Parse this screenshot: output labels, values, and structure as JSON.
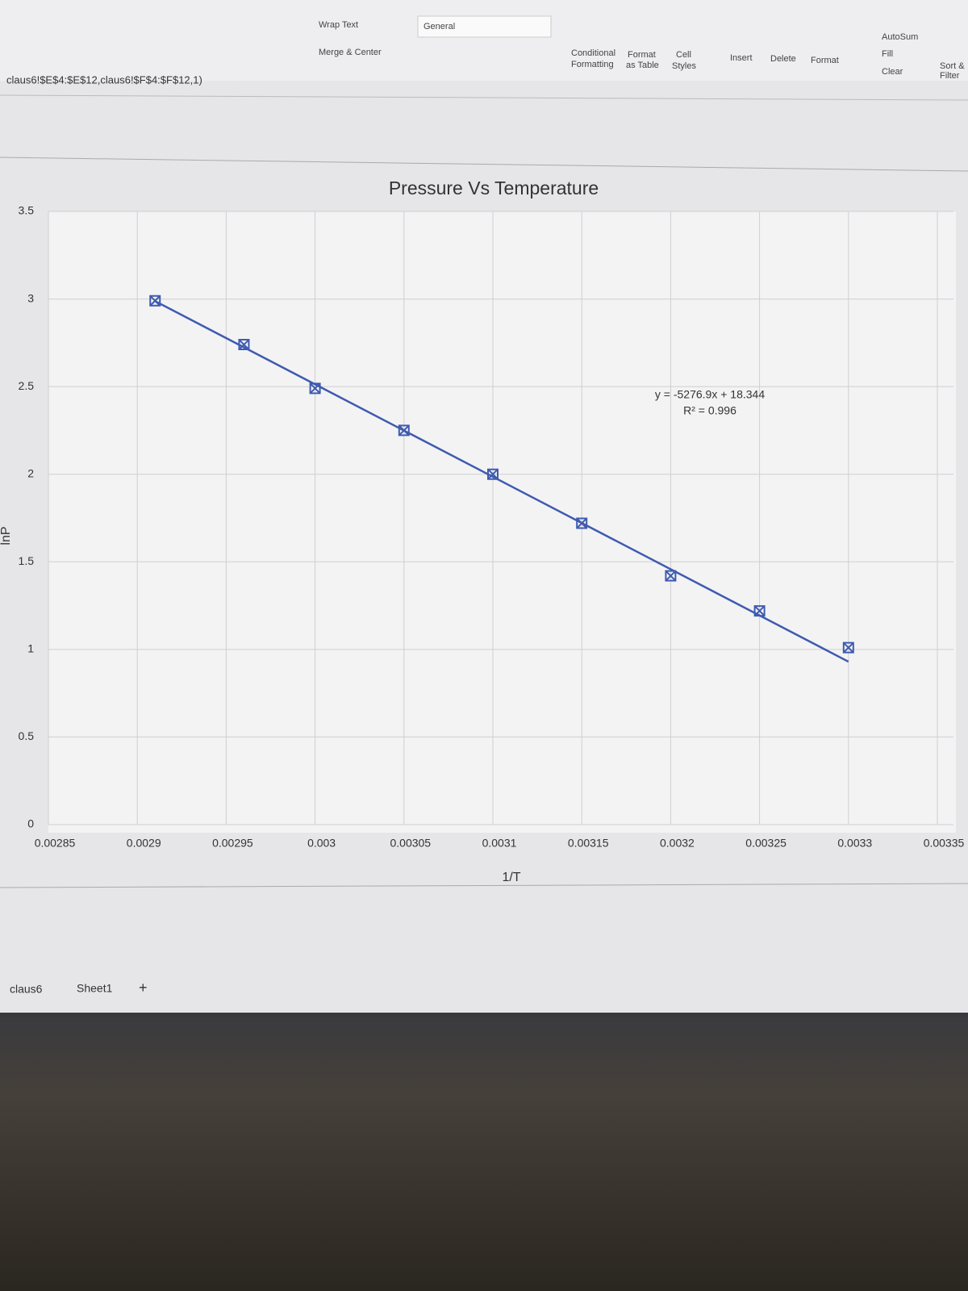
{
  "chart_data": {
    "type": "scatter",
    "title": "Pressure Vs Temperature",
    "xlabel": "1/T",
    "ylabel": "lnP",
    "series": [
      {
        "name": "lnP",
        "color": "#3f5bb0",
        "x": [
          0.00291,
          0.00296,
          0.003,
          0.00305,
          0.0031,
          0.00315,
          0.0032,
          0.00325,
          0.0033
        ],
        "values": [
          2.99,
          2.74,
          2.49,
          2.25,
          2.0,
          1.72,
          1.42,
          1.22,
          1.01
        ]
      }
    ],
    "trendline": {
      "x": [
        0.00291,
        0.0033
      ],
      "values": [
        2.988,
        0.93
      ],
      "color": "#3f5bb0"
    },
    "annotations": [
      "y = -5276.9x + 18.344",
      "R² = 0.996"
    ],
    "xlim": [
      0.00285,
      0.00335
    ],
    "xticks": [
      0.00285,
      0.0029,
      0.00295,
      0.003,
      0.00305,
      0.0031,
      0.00315,
      0.0032,
      0.00325,
      0.0033,
      0.00335
    ],
    "ylim": [
      0,
      3.5
    ],
    "yticks": [
      0,
      0.5,
      1,
      1.5,
      2,
      2.5,
      3,
      3.5
    ],
    "grid": true
  },
  "ui": {
    "ribbon": [
      "Wrap Text",
      "Merge & Center",
      "General",
      "Conditional",
      "Formatting",
      "Format",
      "as Table",
      "Cell",
      "Styles",
      "Insert",
      "Delete",
      "Format",
      "AutoSum",
      "Fill",
      "Clear",
      "Sort &",
      "Filter"
    ],
    "formula": "claus6!$E$4:$E$12,claus6!$F$4:$F$12,1)",
    "tabs": [
      "claus6",
      "Sheet1",
      "+"
    ]
  }
}
